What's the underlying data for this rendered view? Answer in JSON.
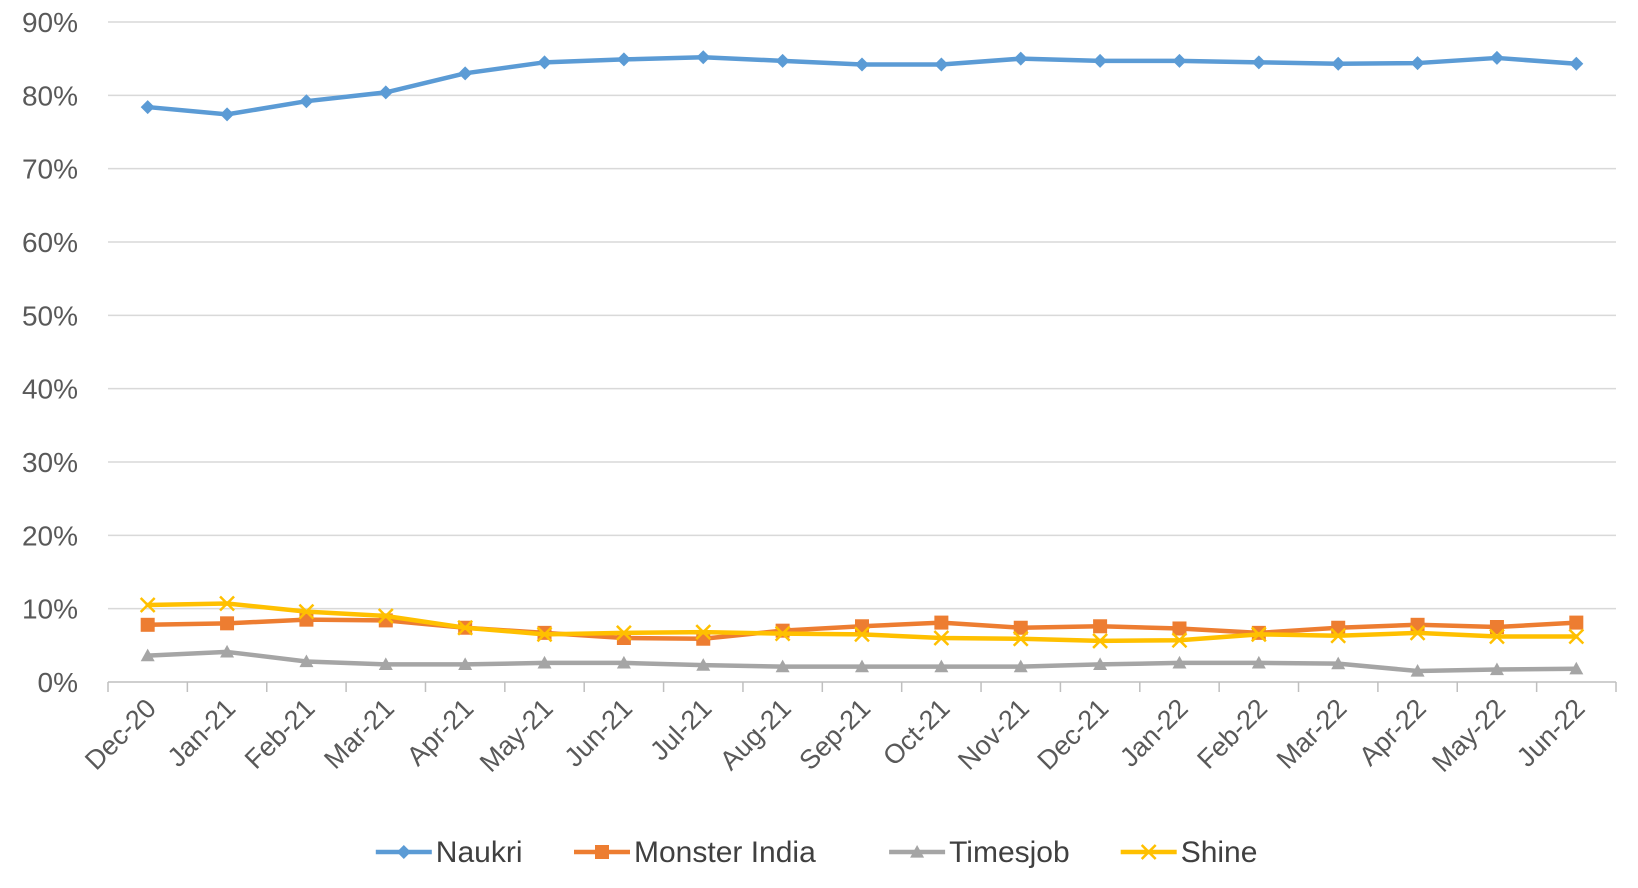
{
  "chart_data": {
    "type": "line",
    "categories": [
      "Dec-20",
      "Jan-21",
      "Feb-21",
      "Mar-21",
      "Apr-21",
      "May-21",
      "Jun-21",
      "Jul-21",
      "Aug-21",
      "Sep-21",
      "Oct-21",
      "Nov-21",
      "Dec-21",
      "Jan-22",
      "Feb-22",
      "Mar-22",
      "Apr-22",
      "May-22",
      "Jun-22"
    ],
    "ylim": [
      0,
      90
    ],
    "yticks": [
      0,
      10,
      20,
      30,
      40,
      50,
      60,
      70,
      80,
      90
    ],
    "ytick_labels": [
      "0%",
      "10%",
      "20%",
      "30%",
      "40%",
      "50%",
      "60%",
      "70%",
      "80%",
      "90%"
    ],
    "grid": "horizontal",
    "legend_position": "bottom",
    "series": [
      {
        "name": "Naukri",
        "color": "#5B9BD5",
        "marker": "diamond",
        "values": [
          78.4,
          77.4,
          79.2,
          80.4,
          83.0,
          84.5,
          84.9,
          85.2,
          84.7,
          84.2,
          84.2,
          85.0,
          84.7,
          84.7,
          84.5,
          84.3,
          84.4,
          85.1,
          84.3
        ]
      },
      {
        "name": "Monster India",
        "color": "#ED7D31",
        "marker": "square",
        "values": [
          7.8,
          8.0,
          8.5,
          8.4,
          7.4,
          6.7,
          6.0,
          5.9,
          7.0,
          7.6,
          8.1,
          7.4,
          7.6,
          7.3,
          6.7,
          7.4,
          7.8,
          7.5,
          8.1
        ]
      },
      {
        "name": "Timesjob",
        "color": "#A5A5A5",
        "marker": "triangle",
        "values": [
          3.6,
          4.1,
          2.8,
          2.4,
          2.4,
          2.6,
          2.6,
          2.3,
          2.1,
          2.1,
          2.1,
          2.1,
          2.4,
          2.6,
          2.6,
          2.5,
          1.5,
          1.7,
          1.8
        ]
      },
      {
        "name": "Shine",
        "color": "#FFC000",
        "marker": "x",
        "values": [
          10.5,
          10.7,
          9.6,
          9.0,
          7.4,
          6.5,
          6.7,
          6.8,
          6.6,
          6.5,
          6.0,
          5.9,
          5.6,
          5.7,
          6.5,
          6.3,
          6.7,
          6.2,
          6.2
        ]
      }
    ]
  }
}
